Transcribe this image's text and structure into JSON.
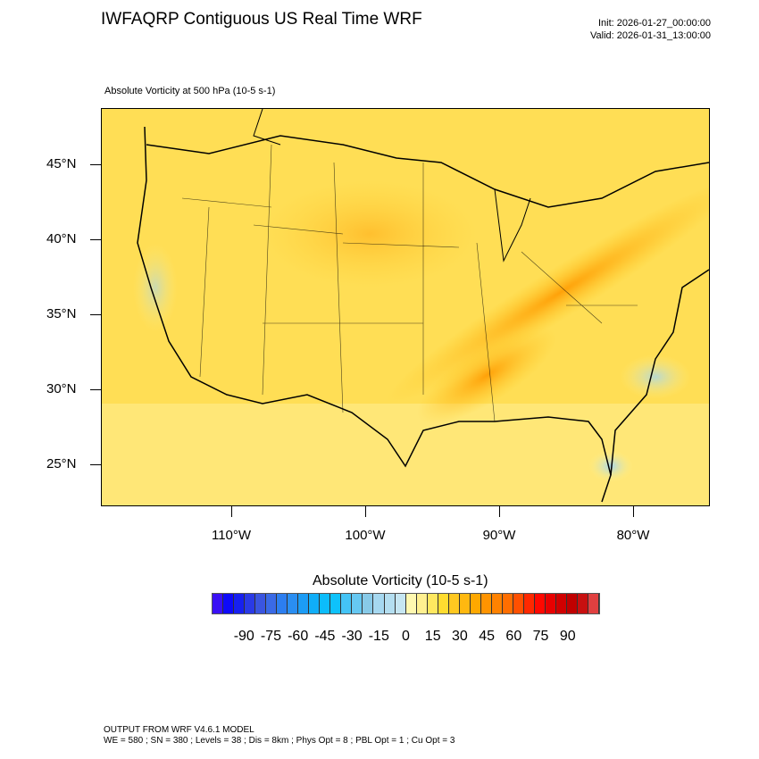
{
  "header": {
    "title": "IWFAQRP Contiguous US Real Time WRF",
    "init": "Init: 2026-01-27_00:00:00",
    "valid": "Valid: 2026-01-31_13:00:00",
    "subtitle": "Absolute Vorticity at 500 hPa   (10-5 s-1)"
  },
  "map": {
    "lat_labels": [
      "45°N",
      "40°N",
      "35°N",
      "30°N",
      "25°N"
    ],
    "lon_labels": [
      "110°W",
      "100°W",
      "90°W",
      "80°W"
    ]
  },
  "colorbar": {
    "title": "Absolute Vorticity  (10-5 s-1)",
    "range": [
      -108,
      108
    ],
    "labels": [
      "-90",
      "-75",
      "-60",
      "-45",
      "-30",
      "-15",
      "0",
      "15",
      "30",
      "45",
      "60",
      "75",
      "90"
    ],
    "colors": [
      "#8a1ff0",
      "#5f18f2",
      "#3a10f5",
      "#0e0af9",
      "#1720f0",
      "#2a3ae6",
      "#3a55e0",
      "#3a6ae6",
      "#2c7ef0",
      "#2a8ef2",
      "#1c9cf5",
      "#10aef8",
      "#0cbcfb",
      "#0ec2fb",
      "#44c4f6",
      "#66c8f2",
      "#88cae8",
      "#a6d8f0",
      "#b4def0",
      "#c6e6f2",
      "#fff8b0",
      "#fff090",
      "#ffe860",
      "#ffdc30",
      "#ffc820",
      "#ffb810",
      "#ffa800",
      "#ff9400",
      "#ff8200",
      "#ff6e00",
      "#ff5000",
      "#ff2800",
      "#ff0800",
      "#e80000",
      "#d00000",
      "#c00000",
      "#c81010",
      "#e04040",
      "#f07878",
      "#ffb0b0"
    ]
  },
  "footer": {
    "line1": "OUTPUT FROM WRF V4.6.1 MODEL",
    "line2": "WE = 580 ; SN = 380 ; Levels = 38 ; Dis = 8km ; Phys Opt = 8 ; PBL Opt = 1 ; Cu Opt = 3"
  }
}
